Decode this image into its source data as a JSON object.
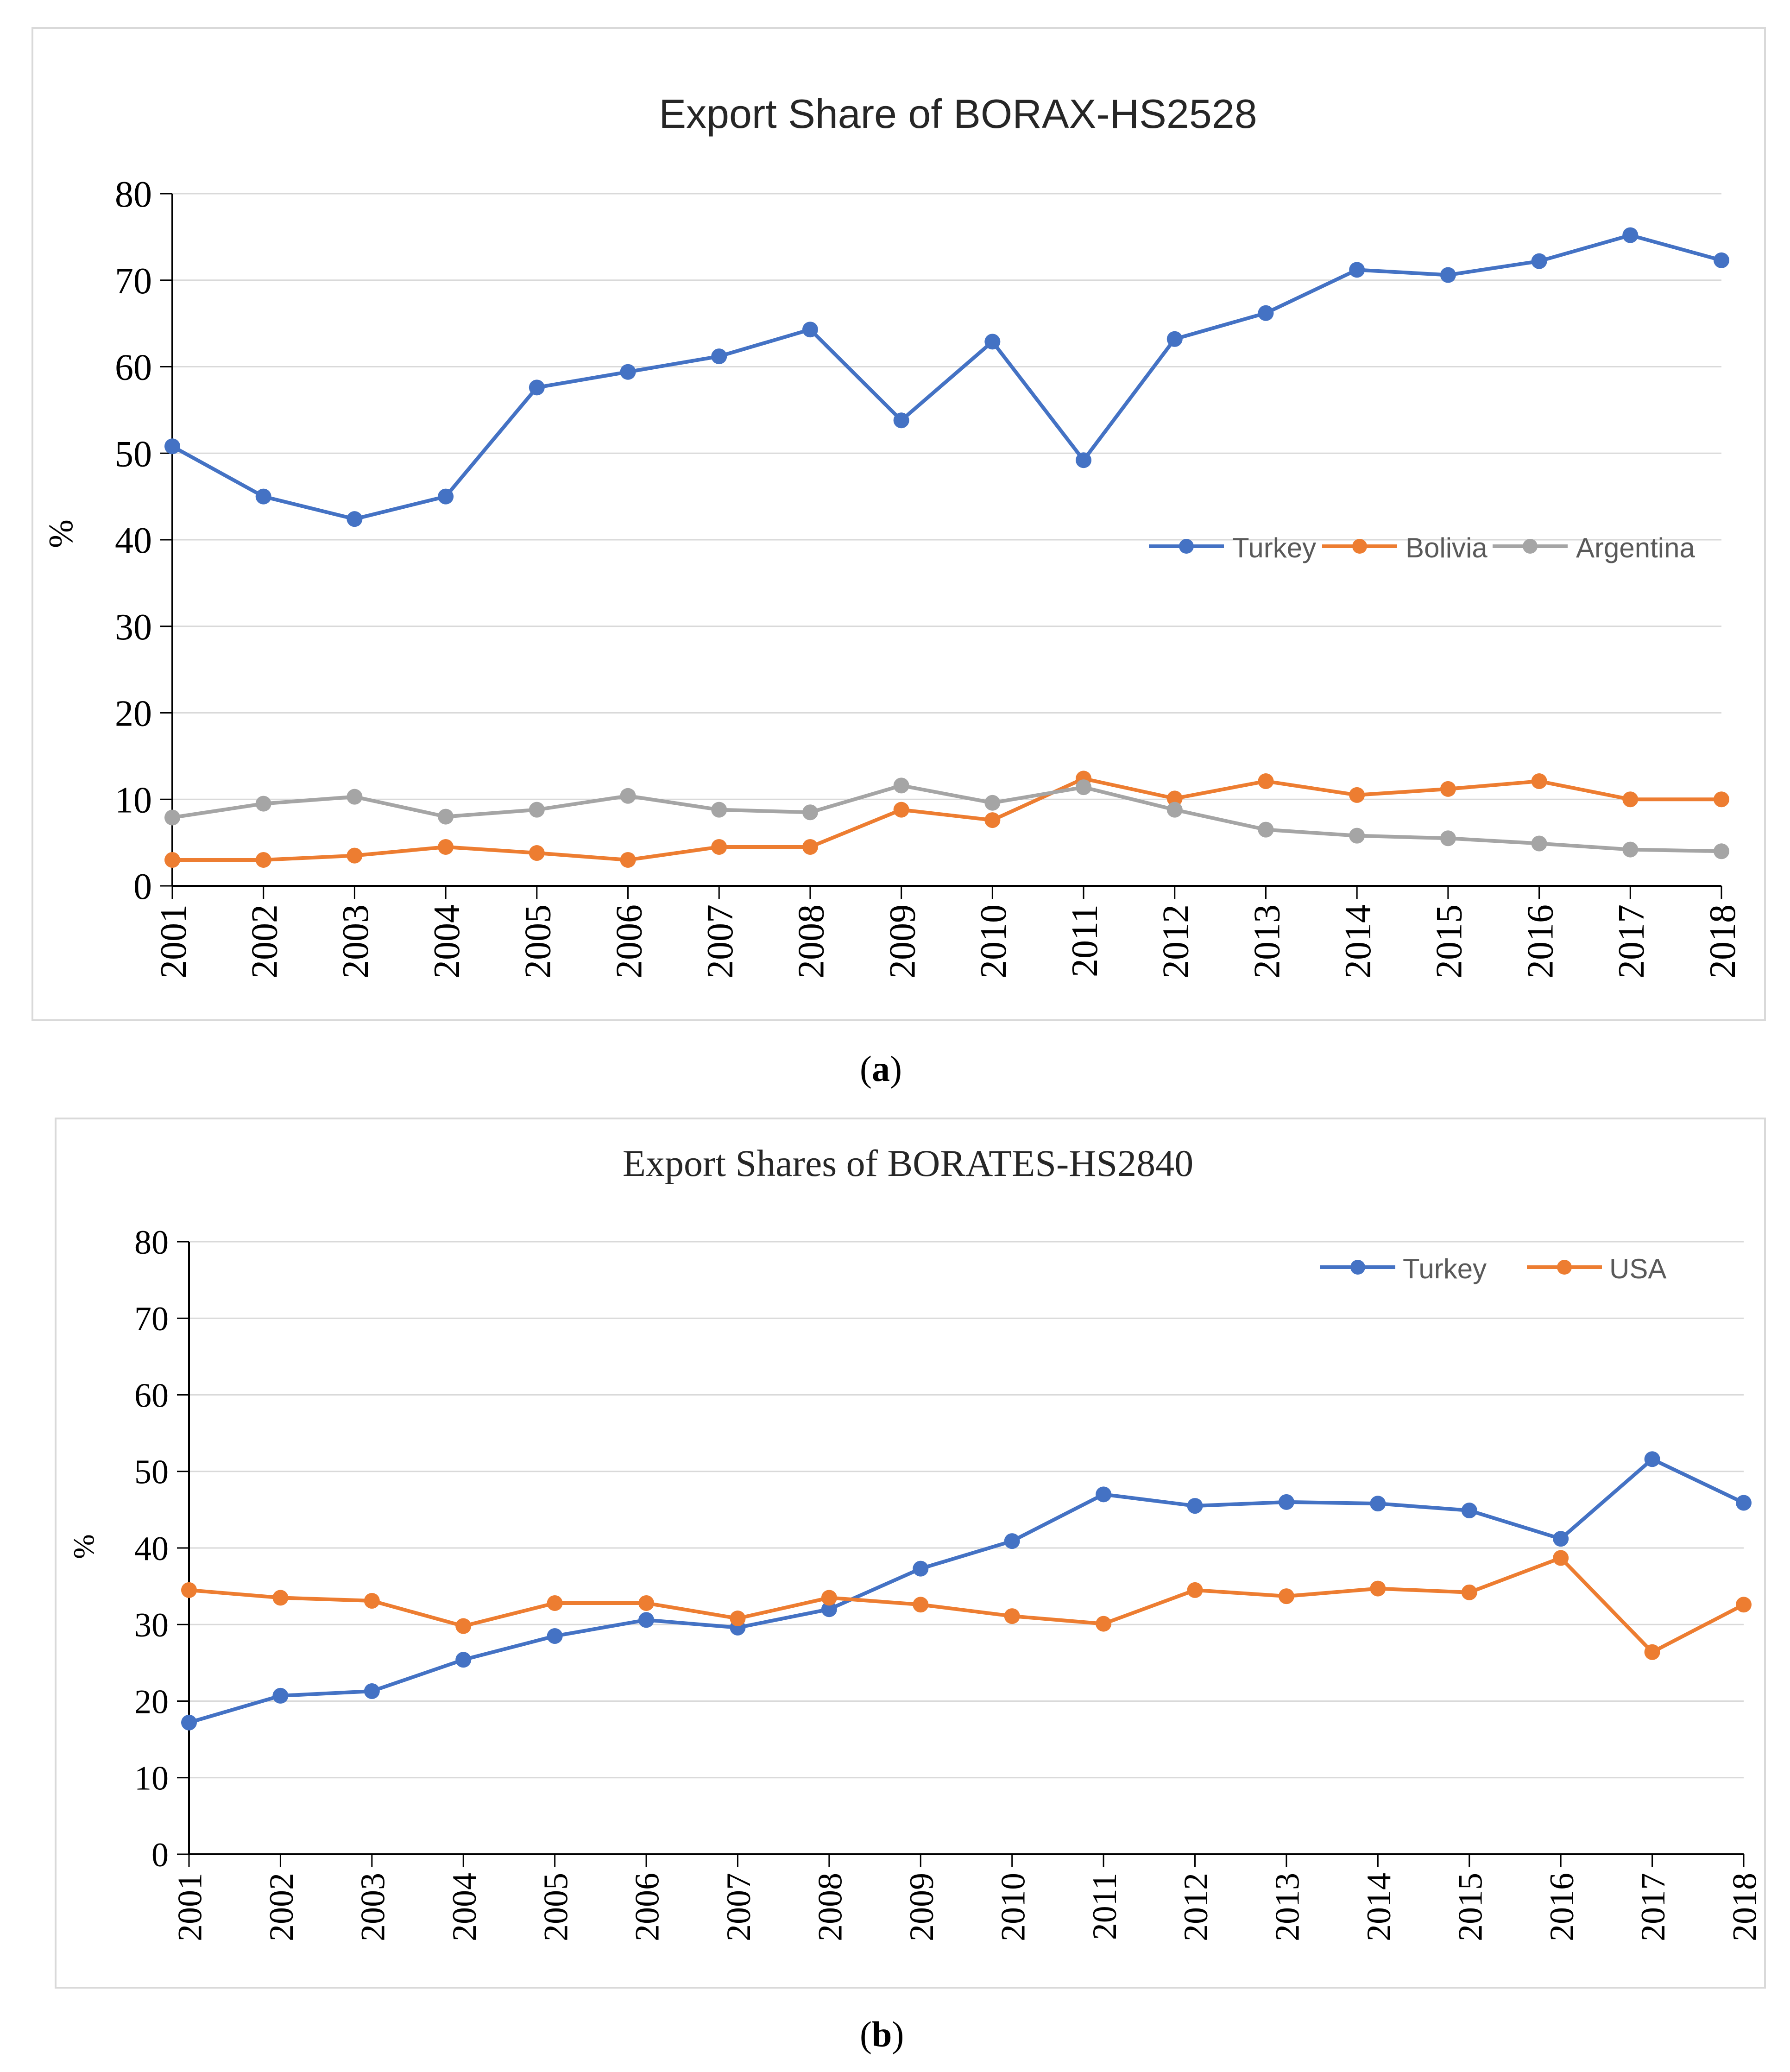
{
  "captions": {
    "a": "a",
    "b": "b"
  },
  "chart_data": [
    {
      "type": "line",
      "title": "Export Share of BORAX-HS2528",
      "xlabel": "",
      "ylabel": "%",
      "ylim": [
        0,
        80
      ],
      "yticks": [
        0,
        10,
        20,
        30,
        40,
        50,
        60,
        70,
        80
      ],
      "grid": true,
      "legend": "right-middle",
      "categories": [
        "2001",
        "2002",
        "2003",
        "2004",
        "2005",
        "2006",
        "2007",
        "2008",
        "2009",
        "2010",
        "2011",
        "2012",
        "2013",
        "2014",
        "2015",
        "2016",
        "2017",
        "2018"
      ],
      "series": [
        {
          "name": "Turkey",
          "color": "#4472c4",
          "values": [
            50.8,
            45.0,
            42.4,
            45.0,
            57.6,
            59.4,
            61.2,
            64.3,
            53.8,
            62.9,
            49.2,
            63.2,
            66.2,
            71.2,
            70.6,
            72.2,
            75.2,
            72.3
          ]
        },
        {
          "name": "Bolivia",
          "color": "#ed7d31",
          "values": [
            3.0,
            3.0,
            3.5,
            4.5,
            3.8,
            3.0,
            4.5,
            4.5,
            8.8,
            7.6,
            12.4,
            10.1,
            12.1,
            10.5,
            11.2,
            12.1,
            10.0,
            10.0
          ]
        },
        {
          "name": "Argentina",
          "color": "#a5a5a5",
          "values": [
            7.9,
            9.5,
            10.3,
            8.0,
            8.8,
            10.4,
            8.8,
            8.5,
            11.6,
            9.6,
            11.4,
            8.8,
            6.5,
            5.8,
            5.5,
            4.9,
            4.2,
            4.0
          ]
        }
      ]
    },
    {
      "type": "line",
      "title": "Export Shares of BORATES-HS2840",
      "xlabel": "",
      "ylabel": "%",
      "ylim": [
        0,
        80
      ],
      "yticks": [
        0,
        10,
        20,
        30,
        40,
        50,
        60,
        70,
        80
      ],
      "grid": true,
      "legend": "top-right",
      "categories": [
        "2001",
        "2002",
        "2003",
        "2004",
        "2005",
        "2006",
        "2007",
        "2008",
        "2009",
        "2010",
        "2011",
        "2012",
        "2013",
        "2014",
        "2015",
        "2016",
        "2017",
        "2018"
      ],
      "series": [
        {
          "name": "Turkey",
          "color": "#4472c4",
          "values": [
            17.2,
            20.7,
            21.3,
            25.4,
            28.5,
            30.6,
            29.6,
            32.0,
            37.3,
            40.9,
            47.0,
            45.5,
            46.0,
            45.8,
            44.9,
            41.2,
            51.6,
            45.9
          ]
        },
        {
          "name": "USA",
          "color": "#ed7d31",
          "values": [
            34.5,
            33.5,
            33.1,
            29.8,
            32.8,
            32.8,
            30.8,
            33.5,
            32.6,
            31.1,
            30.1,
            34.5,
            33.7,
            34.7,
            34.2,
            38.7,
            26.4,
            32.6
          ]
        }
      ]
    }
  ]
}
